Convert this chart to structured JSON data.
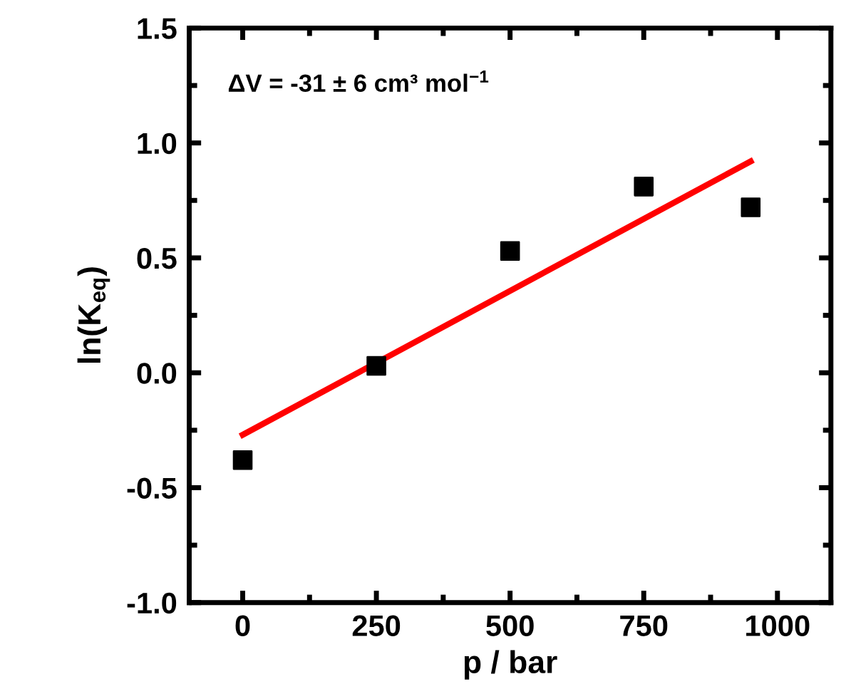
{
  "chart_data": {
    "type": "scatter",
    "xlabel": "p / bar",
    "ylabel": "ln(K$_{eq}$)",
    "annotations": [
      "ΔV = -31 ± 6 cm³ mol$^{−1}$"
    ],
    "xlim": [
      -100,
      1100
    ],
    "xticks": [
      0,
      250,
      500,
      750,
      1000
    ],
    "ylim": [
      -1.0,
      1.5
    ],
    "yticks": [
      {
        "value": -1.0,
        "label": "-1.0"
      },
      {
        "value": -0.5,
        "label": "-0.5"
      },
      {
        "value": 0.0,
        "label": "0.0"
      },
      {
        "value": 0.5,
        "label": "0.5"
      },
      {
        "value": 1.0,
        "label": "1.0"
      },
      {
        "value": 1.5,
        "label": "1.5"
      }
    ],
    "grid": false,
    "marker": "square",
    "series": [
      {
        "color": "#000000",
        "x": [
          0,
          250,
          500,
          750,
          950
        ],
        "values": [
          -0.38,
          0.03,
          0.53,
          0.81,
          0.72
        ]
      },
      {
        "type": "line",
        "color": "#ff0000",
        "line_style": "solid",
        "marker": "none",
        "x": [
          0,
          950
        ],
        "values": [
          -0.27,
          0.92
        ]
      }
    ]
  }
}
